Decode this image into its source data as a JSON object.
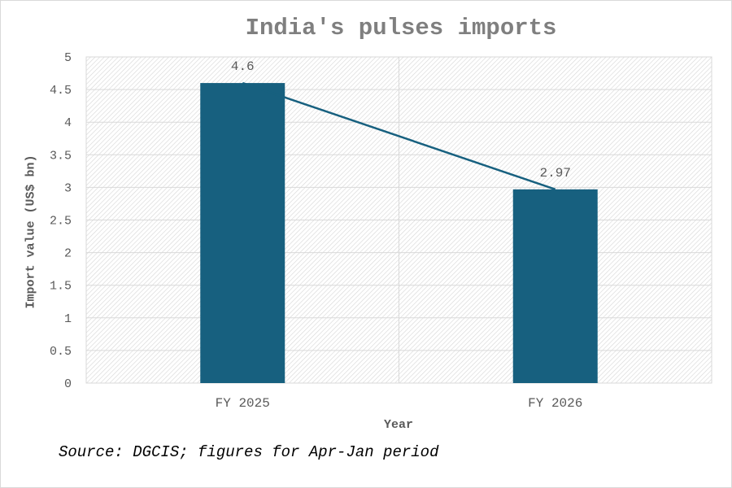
{
  "chart_data": {
    "type": "bar",
    "title": "India's pulses imports",
    "xlabel": "Year",
    "ylabel": "Import value (US$ bn)",
    "categories": [
      "FY 2025",
      "FY 2026"
    ],
    "values": [
      4.6,
      2.97
    ],
    "data_labels": [
      "4.6",
      "2.97"
    ],
    "overlay_line": true,
    "ylim": [
      0,
      5
    ],
    "yticks": [
      "0",
      "0.5",
      "1",
      "1.5",
      "2",
      "2.5",
      "3",
      "3.5",
      "4",
      "4.5",
      "5"
    ],
    "grid": true,
    "legend": "none",
    "colors": {
      "bar": "#17607f",
      "line": "#17607f",
      "grid": "#d9d9d9",
      "text": "#595959"
    }
  },
  "source_note": "Source: DGCIS; figures for Apr-Jan period"
}
